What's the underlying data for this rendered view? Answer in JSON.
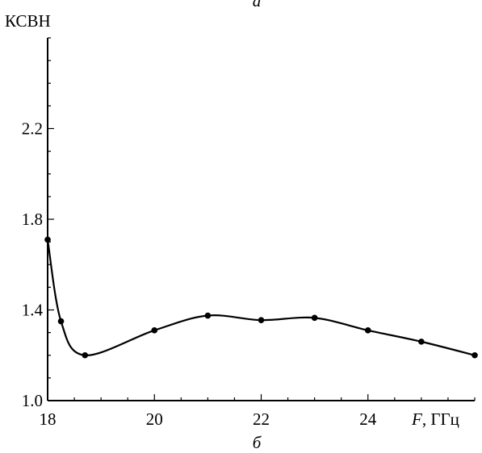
{
  "top_caption": "а",
  "bottom_caption": "б",
  "chart_data": {
    "type": "line",
    "title": "",
    "ylabel": "КСВН",
    "xlabel_var": "F",
    "xlabel_unit": ", ГГц",
    "xlim": [
      18,
      26
    ],
    "ylim": [
      1.0,
      2.6
    ],
    "xticks": [
      18,
      20,
      22,
      24
    ],
    "xtick_labels": [
      "18",
      "20",
      "22",
      "24"
    ],
    "yticks": [
      1.0,
      1.4,
      1.8,
      2.2
    ],
    "ytick_labels": [
      "1.0",
      "1.4",
      "1.8",
      "2.2"
    ],
    "x_minor_step": 0.5,
    "y_minor_step": 0.1,
    "grid": false,
    "series": [
      {
        "x": [
          18.0,
          18.25,
          18.7,
          20.0,
          21.0,
          22.0,
          23.0,
          24.0,
          25.0,
          26.0
        ],
        "y": [
          1.71,
          1.35,
          1.2,
          1.31,
          1.375,
          1.355,
          1.365,
          1.31,
          1.26,
          1.2
        ],
        "markers": true,
        "smooth": true
      }
    ]
  }
}
